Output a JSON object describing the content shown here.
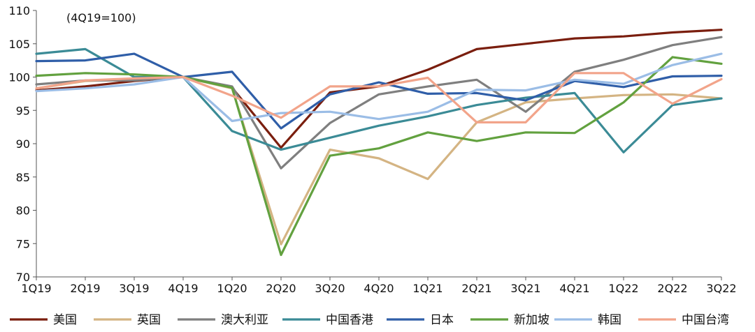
{
  "chart_data": {
    "type": "line",
    "annotation": "(4Q19=100)",
    "categories": [
      "1Q19",
      "2Q19",
      "3Q19",
      "4Q19",
      "1Q20",
      "2Q20",
      "3Q20",
      "4Q20",
      "1Q21",
      "2Q21",
      "3Q21",
      "4Q21",
      "1Q22",
      "2Q22",
      "3Q22"
    ],
    "ylim": [
      70,
      110
    ],
    "yticks": [
      70,
      75,
      80,
      85,
      90,
      95,
      100,
      105,
      110
    ],
    "grid": false,
    "legend_position": "bottom",
    "series": [
      {
        "name": "美国",
        "color": "#7a1e0e",
        "values": [
          98.0,
          98.6,
          99.4,
          100,
          98.4,
          89.4,
          97.7,
          98.6,
          101.1,
          104.2,
          105.0,
          105.8,
          106.1,
          106.7,
          107.1
        ]
      },
      {
        "name": "英国",
        "color": "#d4b483",
        "values": [
          98.3,
          99.4,
          99.7,
          100,
          98.3,
          74.9,
          89.1,
          87.8,
          84.7,
          93.2,
          96.2,
          96.8,
          97.3,
          97.4,
          96.8
        ]
      },
      {
        "name": "澳大利亚",
        "color": "#7f7f7f",
        "values": [
          98.9,
          99.5,
          99.5,
          100,
          98.6,
          86.3,
          93.1,
          97.4,
          98.6,
          99.6,
          94.8,
          100.8,
          102.6,
          104.8,
          106.0
        ]
      },
      {
        "name": "中国香港",
        "color": "#3b8b96",
        "values": [
          103.5,
          104.2,
          100.0,
          100,
          91.9,
          89.1,
          90.9,
          92.7,
          94.1,
          95.8,
          96.9,
          97.6,
          88.7,
          95.8,
          96.8
        ]
      },
      {
        "name": "日本",
        "color": "#2f5ea8",
        "values": [
          102.4,
          102.5,
          103.5,
          100,
          100.8,
          92.3,
          97.4,
          99.2,
          97.5,
          97.6,
          96.5,
          99.4,
          98.5,
          100.1,
          100.2
        ]
      },
      {
        "name": "新加坡",
        "color": "#62a13f",
        "values": [
          100.2,
          100.6,
          100.4,
          100,
          98.4,
          73.3,
          88.2,
          89.3,
          91.7,
          90.4,
          91.7,
          91.6,
          96.2,
          103.0,
          102.0
        ]
      },
      {
        "name": "韩国",
        "color": "#9bbde6",
        "values": [
          97.9,
          98.3,
          98.9,
          100,
          93.4,
          94.6,
          94.8,
          93.7,
          94.8,
          98.1,
          98.0,
          99.6,
          99.0,
          101.8,
          103.5
        ]
      },
      {
        "name": "中国台湾",
        "color": "#f2a48a",
        "values": [
          98.3,
          99.5,
          99.8,
          100,
          97.2,
          93.9,
          98.6,
          98.6,
          99.9,
          93.2,
          93.2,
          100.6,
          100.6,
          96.0,
          99.7
        ]
      }
    ]
  }
}
